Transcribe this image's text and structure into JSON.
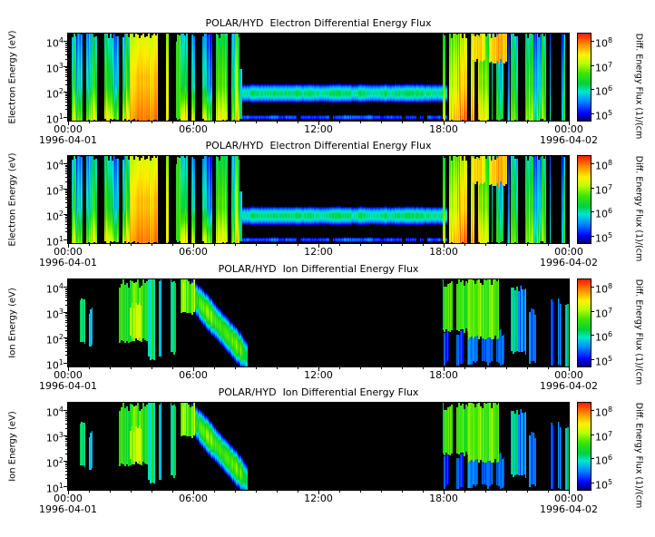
{
  "page": {
    "background": "#ffffff",
    "text_color": "#000000"
  },
  "chart_data": {
    "type": "heatmap",
    "n_panels": 4,
    "panels": [
      {
        "title": "POLAR/HYD  Electron Differential Energy Flux",
        "ylabel": "Electron Energy (eV)",
        "spectrogram": "electron"
      },
      {
        "title": "POLAR/HYD  Electron Differential Energy Flux",
        "ylabel": "Electron Energy (eV)",
        "spectrogram": "electron"
      },
      {
        "title": "POLAR/HYD  Ion Differential Energy Flux",
        "ylabel": "Ion Energy (eV)",
        "spectrogram": "ion"
      },
      {
        "title": "POLAR/HYD  Ion Differential Energy Flux",
        "ylabel": "Ion Energy (eV)",
        "spectrogram": "ion"
      }
    ],
    "x_axis": {
      "tick_labels": [
        "00:00",
        "06:00",
        "12:00",
        "18:00",
        "00:00"
      ],
      "tick_hours": [
        0,
        6,
        12,
        18,
        24
      ],
      "date_left": "1996-04-01",
      "date_right": "1996-04-02",
      "range_hours": [
        0,
        24
      ]
    },
    "y_axis": {
      "scale": "log",
      "unit": "eV",
      "tick_exponents": [
        4,
        3,
        2,
        1
      ],
      "log_range": [
        0.85,
        4.3
      ]
    },
    "colorbar": {
      "label": "Diff. Energy Flux (1)/(cm",
      "tick_exponents": [
        8,
        7,
        6,
        5
      ],
      "log_range": [
        4.7,
        8.3
      ]
    },
    "flux_black_threshold": 4.78,
    "colormap": [
      [
        0.0,
        0,
        0,
        110
      ],
      [
        0.08,
        0,
        0,
        255
      ],
      [
        0.22,
        0,
        140,
        255
      ],
      [
        0.33,
        0,
        230,
        210
      ],
      [
        0.42,
        0,
        210,
        60
      ],
      [
        0.55,
        70,
        230,
        0
      ],
      [
        0.66,
        190,
        255,
        0
      ],
      [
        0.76,
        255,
        240,
        0
      ],
      [
        0.87,
        255,
        150,
        0
      ],
      [
        1.0,
        255,
        30,
        0
      ]
    ],
    "spectrograms": {
      "electron": {
        "features": [
          {
            "type": "noisy",
            "t0": 0.0,
            "t1": 1.6,
            "e0": 0.85,
            "e1": 4.3,
            "flux": 6.0,
            "noise": 1.1,
            "gap": 0.25,
            "lowBoost": 0.9
          },
          {
            "type": "noisy",
            "t0": 1.6,
            "t1": 2.95,
            "e0": 0.85,
            "e1": 4.3,
            "flux": 6.3,
            "noise": 0.9,
            "gap": 0.18,
            "lowBoost": 1.0
          },
          {
            "type": "noisy",
            "t0": 2.95,
            "t1": 4.3,
            "e0": 0.85,
            "e1": 4.3,
            "flux": 7.5,
            "noise": 0.35,
            "gap": 0.05,
            "lowBoost": 0.3
          },
          {
            "type": "noisy",
            "t0": 4.55,
            "t1": 4.8,
            "e0": 0.85,
            "e1": 4.3,
            "flux": 7.2,
            "noise": 0.4,
            "gap": 0.1,
            "lowBoost": 0.2
          },
          {
            "type": "noisy",
            "t0": 5.15,
            "t1": 5.35,
            "e0": 1.0,
            "e1": 4.1,
            "flux": 6.3,
            "noise": 0.6,
            "gap": 0.25
          },
          {
            "type": "noisy",
            "t0": 5.35,
            "t1": 6.9,
            "e0": 0.85,
            "e1": 4.3,
            "flux": 5.8,
            "noise": 0.7,
            "gap": 0.22,
            "lowBoost": 1.3
          },
          {
            "type": "noisy",
            "t0": 7.05,
            "t1": 8.2,
            "e0": 0.85,
            "e1": 4.3,
            "flux": 6.4,
            "noise": 0.8,
            "gap": 0.15,
            "lowBoost": 0.7
          },
          {
            "type": "noisy",
            "t0": 8.2,
            "t1": 8.55,
            "e0": 0.85,
            "e1": 2.8,
            "flux": 5.9,
            "noise": 0.6,
            "gap": 0.2,
            "lowBoost": 0.5
          },
          {
            "type": "band",
            "t0": 8.3,
            "t1": 18.15,
            "eCenter": 1.95,
            "eWidth": 0.4,
            "flux": 6.1,
            "noise": 0.2,
            "gap": 0.0
          },
          {
            "type": "band",
            "t0": 8.3,
            "t1": 18.15,
            "eCenter": 1.0,
            "eWidth": 0.15,
            "flux": 5.3,
            "noise": 0.3,
            "gap": 0.1
          },
          {
            "type": "noisy",
            "t0": 17.95,
            "t1": 20.3,
            "e0": 0.85,
            "e1": 4.3,
            "flux": 7.1,
            "noise": 0.7,
            "gap": 0.1,
            "lowBoost": 0.5
          },
          {
            "type": "noisy",
            "t0": 19.35,
            "t1": 21.0,
            "e0": 3.2,
            "e1": 4.3,
            "flux": 7.5,
            "noise": 0.4,
            "gap": 0.08
          },
          {
            "type": "noisy",
            "t0": 20.3,
            "t1": 21.15,
            "e0": 0.85,
            "e1": 4.3,
            "flux": 5.7,
            "noise": 1.0,
            "gap": 0.45,
            "lowBoost": 0.5
          },
          {
            "type": "noisy",
            "t0": 21.15,
            "t1": 22.9,
            "e0": 0.85,
            "e1": 4.3,
            "flux": 6.2,
            "noise": 1.0,
            "gap": 0.28,
            "lowBoost": 0.5
          },
          {
            "type": "noisy",
            "t0": 23.05,
            "t1": 24.0,
            "e0": 0.85,
            "e1": 4.3,
            "flux": 6.0,
            "noise": 1.1,
            "gap": 0.35,
            "lowBoost": 0.4
          }
        ]
      },
      "ion": {
        "features": [
          {
            "type": "noisy",
            "t0": 0.55,
            "t1": 0.8,
            "e0": 1.8,
            "e1": 3.6,
            "flux": 6.2,
            "noise": 0.5,
            "gap": 0.2
          },
          {
            "type": "noisy",
            "t0": 1.0,
            "t1": 1.15,
            "e0": 1.7,
            "e1": 3.1,
            "flux": 5.7,
            "noise": 0.5,
            "gap": 0.25
          },
          {
            "type": "noisy",
            "t0": 2.4,
            "t1": 3.8,
            "e0": 1.9,
            "e1": 4.15,
            "flux": 6.5,
            "noise": 0.6,
            "gap": 0.12
          },
          {
            "type": "noisy",
            "t0": 2.9,
            "t1": 3.55,
            "e0": 2.0,
            "e1": 3.3,
            "flux": 7.0,
            "noise": 0.4,
            "gap": 0.1
          },
          {
            "type": "noisy",
            "t0": 3.8,
            "t1": 4.45,
            "e0": 1.2,
            "e1": 4.3,
            "flux": 6.0,
            "noise": 0.9,
            "gap": 0.35
          },
          {
            "type": "noisy",
            "t0": 4.9,
            "t1": 5.15,
            "e0": 1.4,
            "e1": 4.3,
            "flux": 5.9,
            "noise": 0.7,
            "gap": 0.3
          },
          {
            "type": "noisy",
            "t0": 5.35,
            "t1": 6.6,
            "e0": 3.0,
            "e1": 4.3,
            "flux": 6.7,
            "noise": 0.6,
            "gap": 0.22
          },
          {
            "type": "dispersion",
            "t0": 5.4,
            "t1": 8.6,
            "eStart": 4.2,
            "eEnd": 1.2,
            "width": 0.75,
            "flux": 6.6,
            "noise": 0.5,
            "gap": 0.16
          },
          {
            "type": "noisy",
            "t0": 17.95,
            "t1": 19.15,
            "e0": 2.3,
            "e1": 4.2,
            "flux": 6.5,
            "noise": 0.6,
            "gap": 0.15
          },
          {
            "type": "noisy",
            "t0": 19.15,
            "t1": 20.65,
            "e0": 2.0,
            "e1": 4.25,
            "flux": 6.8,
            "noise": 0.5,
            "gap": 0.1
          },
          {
            "type": "noisy",
            "t0": 18.0,
            "t1": 20.9,
            "e0": 1.0,
            "e1": 2.2,
            "flux": 5.3,
            "noise": 0.5,
            "gap": 0.25
          },
          {
            "type": "noisy",
            "t0": 21.2,
            "t1": 21.95,
            "e0": 1.4,
            "e1": 4.0,
            "flux": 5.9,
            "noise": 0.8,
            "gap": 0.3
          },
          {
            "type": "noisy",
            "t0": 22.05,
            "t1": 22.5,
            "e0": 1.0,
            "e1": 3.0,
            "flux": 5.4,
            "noise": 0.7,
            "gap": 0.35
          },
          {
            "type": "noisy",
            "t0": 23.1,
            "t1": 24.0,
            "e0": 0.85,
            "e1": 3.4,
            "flux": 5.7,
            "noise": 0.9,
            "gap": 0.3
          }
        ]
      }
    }
  }
}
